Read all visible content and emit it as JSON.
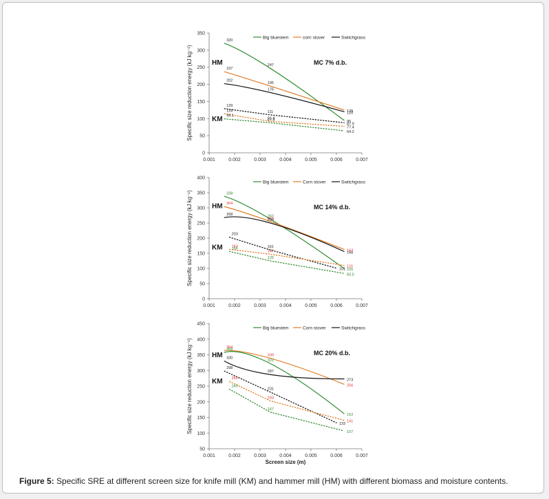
{
  "caption": {
    "label": "Figure 5:",
    "text": "Specific SRE at different screen size for knife mill (KM) and hammer mill (HM) with different biomass and moisture contents."
  },
  "colors": {
    "big_bluestem": "#2e8b2e",
    "corn_stover": "#e07b24",
    "switchgrass": "#111111",
    "label_red": "#e03030"
  },
  "chart_data": [
    {
      "type": "line",
      "annotation": "MC 7% d.b.",
      "ylabel": "Specific size reduction energy (kJ kg⁻¹)",
      "xlabel": "",
      "xlim": [
        0.001,
        0.007
      ],
      "ylim": [
        0,
        350
      ],
      "x_ticks": [
        "0.001",
        "0.002",
        "0.003",
        "0.004",
        "0.005",
        "0.006",
        "0.007"
      ],
      "y_ticks": [
        "0",
        "50",
        "100",
        "150",
        "200",
        "250",
        "300",
        "350"
      ],
      "group_labels": [
        "HM",
        "KM"
      ],
      "legend": [
        "Big bluestem",
        "corn stover",
        "Switchgrass"
      ],
      "series": [
        {
          "mill": "HM",
          "biomass": "big_bluestem",
          "x": [
            0.0016,
            0.0034,
            0.0063
          ],
          "y": [
            320,
            247,
            95
          ],
          "labels": [
            "320",
            "247",
            "95"
          ]
        },
        {
          "mill": "HM",
          "biomass": "corn_stover",
          "x": [
            0.0016,
            0.0034,
            0.0063
          ],
          "y": [
            237,
            195,
            125
          ],
          "labels": [
            "237",
            "195",
            "125"
          ]
        },
        {
          "mill": "HM",
          "biomass": "switchgrass",
          "x": [
            0.0016,
            0.0034,
            0.0063
          ],
          "y": [
            202,
            176,
            120
          ],
          "labels": [
            "202",
            "176",
            "120"
          ]
        },
        {
          "mill": "KM",
          "biomass": "switchgrass",
          "x": [
            0.0016,
            0.0034,
            0.0063
          ],
          "y": [
            129,
            111,
            87.9
          ],
          "labels": [
            "129",
            "111",
            "87.9"
          ]
        },
        {
          "mill": "KM",
          "biomass": "corn_stover",
          "x": [
            0.0016,
            0.0034,
            0.0063
          ],
          "y": [
            114,
            91.8,
            77.4
          ],
          "labels": [
            "114",
            "91.8",
            "77.4"
          ]
        },
        {
          "mill": "KM",
          "biomass": "big_bluestem",
          "x": [
            0.0016,
            0.0034,
            0.0063
          ],
          "y": [
            99.1,
            87.8,
            64.2
          ],
          "labels": [
            "99.1",
            "87.8",
            "64.2"
          ]
        }
      ]
    },
    {
      "type": "line",
      "annotation": "MC 14% d.b.",
      "ylabel": "Specific size reduction energy (kJ kg⁻¹)",
      "xlabel": "",
      "xlim": [
        0.001,
        0.007
      ],
      "ylim": [
        0,
        400
      ],
      "x_ticks": [
        "0.001",
        "0.002",
        "0.003",
        "0.004",
        "0.005",
        "0.006",
        "0.007"
      ],
      "y_ticks": [
        "0",
        "50",
        "100",
        "150",
        "200",
        "250",
        "300",
        "350",
        "400"
      ],
      "group_labels": [
        "HM",
        "KM"
      ],
      "legend": [
        "Big bluestem",
        "Corn stover",
        "Switchgrass"
      ],
      "series": [
        {
          "mill": "HM",
          "biomass": "big_bluestem",
          "x": [
            0.0016,
            0.0034,
            0.0063
          ],
          "y": [
            338,
            263,
            100
          ],
          "labels": [
            "338",
            "263",
            "100"
          ]
        },
        {
          "mill": "HM",
          "biomass": "corn_stover",
          "x": [
            0.0016,
            0.0034,
            0.0063
          ],
          "y": [
            304,
            255,
            163
          ],
          "labels": [
            "304",
            "255",
            "163"
          ]
        },
        {
          "mill": "HM",
          "biomass": "switchgrass",
          "x": [
            0.0016,
            0.0034,
            0.0063
          ],
          "y": [
            268,
            250,
            156
          ],
          "labels": [
            "268",
            "250",
            "156"
          ]
        },
        {
          "mill": "KM",
          "biomass": "switchgrass",
          "x": [
            0.0018,
            0.0034,
            0.006
          ],
          "y": [
            203,
            161,
            101
          ],
          "labels": [
            "203",
            "161",
            "101"
          ]
        },
        {
          "mill": "KM",
          "biomass": "corn_stover",
          "x": [
            0.0018,
            0.0034,
            0.0063
          ],
          "y": [
            163,
            147,
            110
          ],
          "labels": [
            "163",
            "147",
            "110"
          ]
        },
        {
          "mill": "KM",
          "biomass": "big_bluestem",
          "x": [
            0.0018,
            0.0034,
            0.0063
          ],
          "y": [
            156,
            125,
            83.5
          ],
          "labels": [
            "156",
            "125",
            "83.5"
          ]
        }
      ]
    },
    {
      "type": "line",
      "annotation": "MC 20% d.b.",
      "ylabel": "Specific size reduction energy (kJ kg⁻¹)",
      "xlabel": "Screen size (m)",
      "xlim": [
        0.001,
        0.007
      ],
      "ylim": [
        50,
        450
      ],
      "x_ticks": [
        "0.001",
        "0.002",
        "0.003",
        "0.004",
        "0.005",
        "0.006",
        "0.007"
      ],
      "y_ticks": [
        "50",
        "100",
        "150",
        "200",
        "250",
        "300",
        "350",
        "400",
        "450"
      ],
      "group_labels": [
        "HM",
        "KM"
      ],
      "legend": [
        "Big bluestem",
        "Corn stover",
        "Switchgrass"
      ],
      "series": [
        {
          "mill": "HM",
          "biomass": "corn_stover",
          "x": [
            0.0016,
            0.0034,
            0.0063
          ],
          "y": [
            364,
            339,
            256
          ],
          "labels": [
            "364",
            "339",
            "256"
          ]
        },
        {
          "mill": "HM",
          "biomass": "big_bluestem",
          "x": [
            0.0016,
            0.0034,
            0.0063
          ],
          "y": [
            358,
            322,
            162
          ],
          "labels": [
            "358",
            "322",
            "162"
          ]
        },
        {
          "mill": "HM",
          "biomass": "switchgrass",
          "x": [
            0.0016,
            0.0034,
            0.0063
          ],
          "y": [
            330,
            287,
            273
          ],
          "labels": [
            "330",
            "287",
            "273"
          ]
        },
        {
          "mill": "KM",
          "biomass": "switchgrass",
          "x": [
            0.0016,
            0.0034,
            0.006
          ],
          "y": [
            298,
            231,
            133
          ],
          "labels": [
            "298",
            "231",
            "133"
          ]
        },
        {
          "mill": "KM",
          "biomass": "corn_stover",
          "x": [
            0.0018,
            0.0034,
            0.0063
          ],
          "y": [
            265,
            203,
            141
          ],
          "labels": [
            "265",
            "203",
            "141"
          ]
        },
        {
          "mill": "KM",
          "biomass": "big_bluestem",
          "x": [
            0.0018,
            0.0034,
            0.0063
          ],
          "y": [
            240,
            167,
            107
          ],
          "labels": [
            "240",
            "167",
            "107"
          ]
        }
      ]
    }
  ]
}
